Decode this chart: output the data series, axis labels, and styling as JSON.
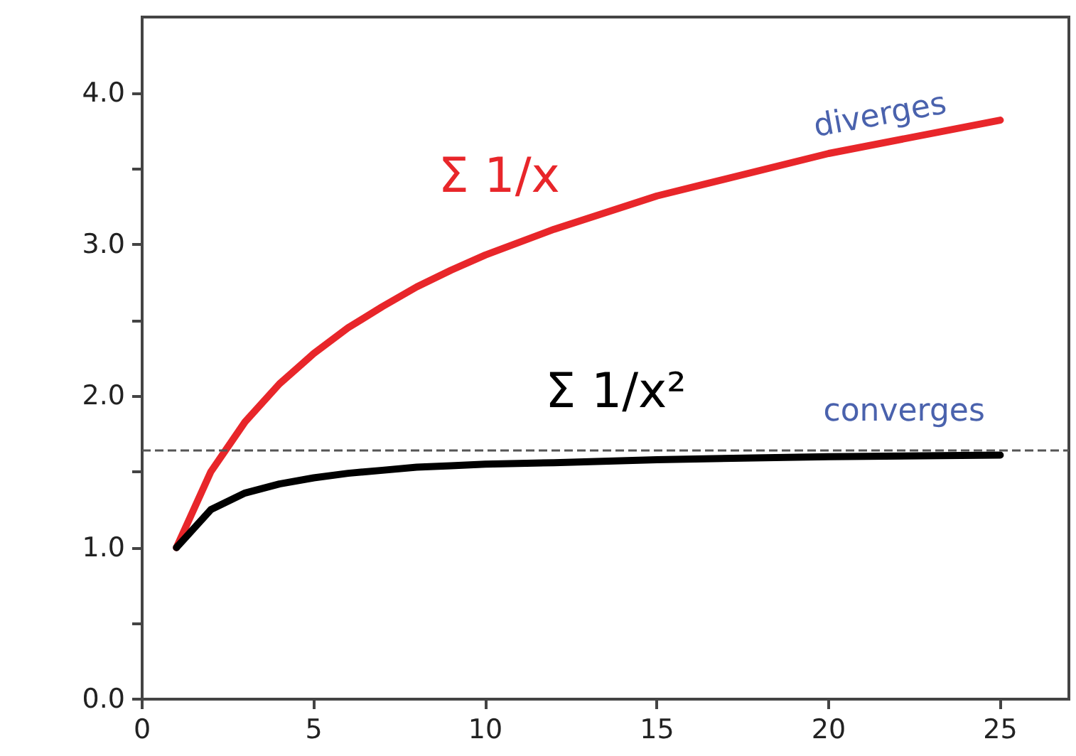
{
  "chart_data": {
    "type": "line",
    "x": [
      1,
      2,
      3,
      4,
      5,
      6,
      7,
      8,
      9,
      10,
      12,
      15,
      20,
      25
    ],
    "series": [
      {
        "name": "Σ 1/x",
        "color": "#e8262a",
        "values": [
          1.0,
          1.5,
          1.83,
          2.08,
          2.28,
          2.45,
          2.59,
          2.72,
          2.83,
          2.93,
          3.1,
          3.32,
          3.6,
          3.82
        ]
      },
      {
        "name": "Σ 1/x²",
        "color": "#000000",
        "values": [
          1.0,
          1.25,
          1.36,
          1.42,
          1.46,
          1.49,
          1.51,
          1.53,
          1.54,
          1.55,
          1.56,
          1.58,
          1.6,
          1.61
        ]
      }
    ],
    "xlim": [
      0,
      27
    ],
    "xticks": [
      0,
      5,
      10,
      15,
      20,
      25
    ],
    "ylim": [
      0,
      4.5
    ],
    "yticks": [
      {
        "value": 0,
        "label": "0.0"
      },
      {
        "value": 0.5,
        "label": null
      },
      {
        "value": 1,
        "label": "1.0"
      },
      {
        "value": 1.5,
        "label": null
      },
      {
        "value": 2,
        "label": "2.0"
      },
      {
        "value": 2.5,
        "label": null
      },
      {
        "value": 3,
        "label": "3.0"
      },
      {
        "value": 3.5,
        "label": null
      },
      {
        "value": 4,
        "label": "4.0"
      }
    ],
    "ref_lines": [
      {
        "axis": "y",
        "value": 1.64,
        "color": "#555555",
        "line_style": "dashed"
      }
    ],
    "annotations": [
      "diverges",
      "converges"
    ],
    "grid": false,
    "legend": false,
    "marker": "none",
    "line_style": "solid"
  }
}
